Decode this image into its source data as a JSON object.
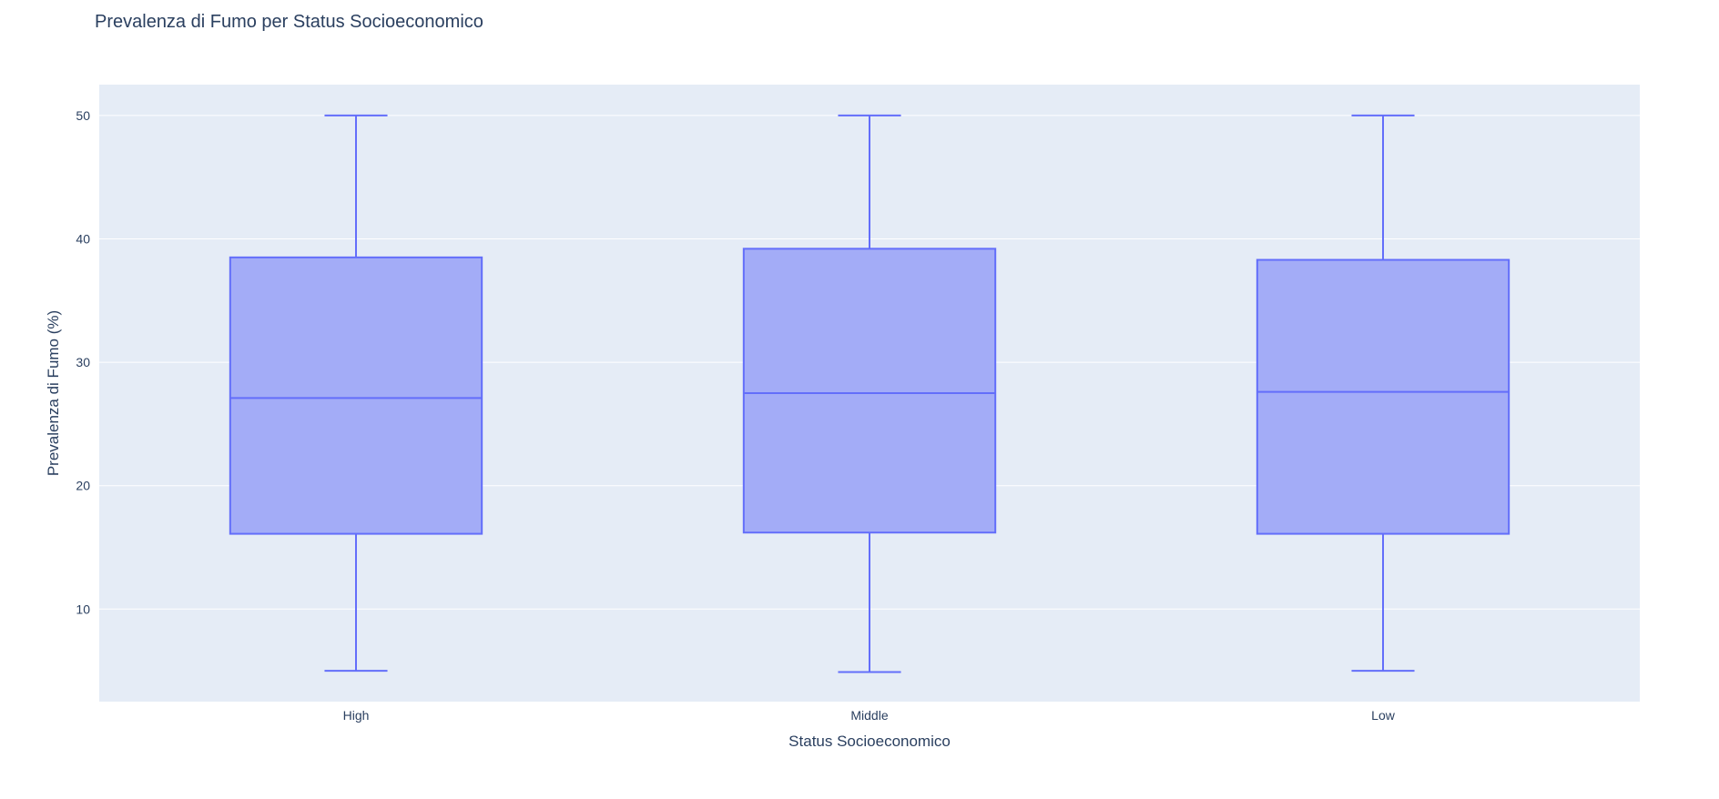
{
  "chart_data": {
    "type": "box",
    "title": "Prevalenza di Fumo per Status Socioeconomico",
    "xlabel": "Status Socioeconomico",
    "ylabel": "Prevalenza di Fumo (%)",
    "categories": [
      "High",
      "Middle",
      "Low"
    ],
    "ylim": [
      2.5,
      52.5
    ],
    "yticks": [
      10,
      20,
      30,
      40,
      50
    ],
    "grid": true,
    "legend": "none",
    "series": [
      {
        "boxes": [
          {
            "category": "High",
            "min": 5.0,
            "q1": 16.1,
            "median": 27.1,
            "q3": 38.5,
            "max": 50.0
          },
          {
            "category": "Middle",
            "min": 4.9,
            "q1": 16.2,
            "median": 27.5,
            "q3": 39.2,
            "max": 50.0
          },
          {
            "category": "Low",
            "min": 5.0,
            "q1": 16.1,
            "median": 27.6,
            "q3": 38.3,
            "max": 50.0
          }
        ]
      }
    ],
    "colors": {
      "plot_bg": "#e5ecf6",
      "grid": "#ffffff",
      "box_line": "#636efa",
      "box_fill": "#a3acf7",
      "text": "#2a3f5f"
    }
  }
}
